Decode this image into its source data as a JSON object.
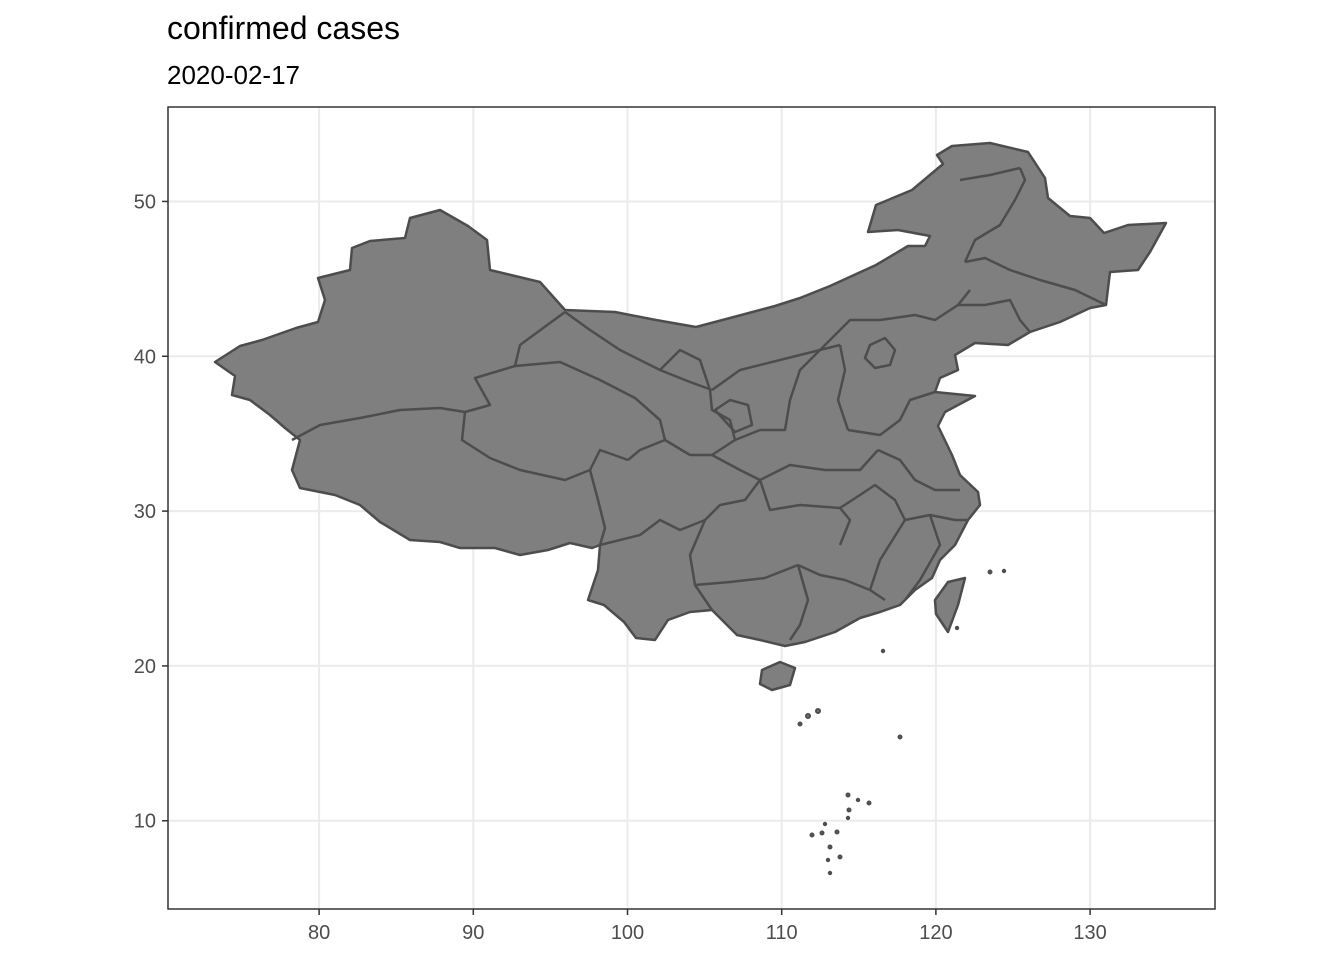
{
  "title": "confirmed cases",
  "subtitle": "2020-02-17",
  "chart_data": {
    "type": "map",
    "title": "confirmed cases",
    "subtitle": "2020-02-17",
    "xlabel": "",
    "ylabel": "",
    "xlim": [
      70.2,
      138.1
    ],
    "ylim": [
      4.3,
      56.1
    ],
    "x_ticks": [
      80,
      90,
      100,
      110,
      120,
      130
    ],
    "y_ticks": [
      10,
      20,
      30,
      40,
      50
    ],
    "grid": true,
    "fill_color": "#7f7f7f",
    "border_color": "#4d4d4d",
    "region": "China (provinces)"
  }
}
